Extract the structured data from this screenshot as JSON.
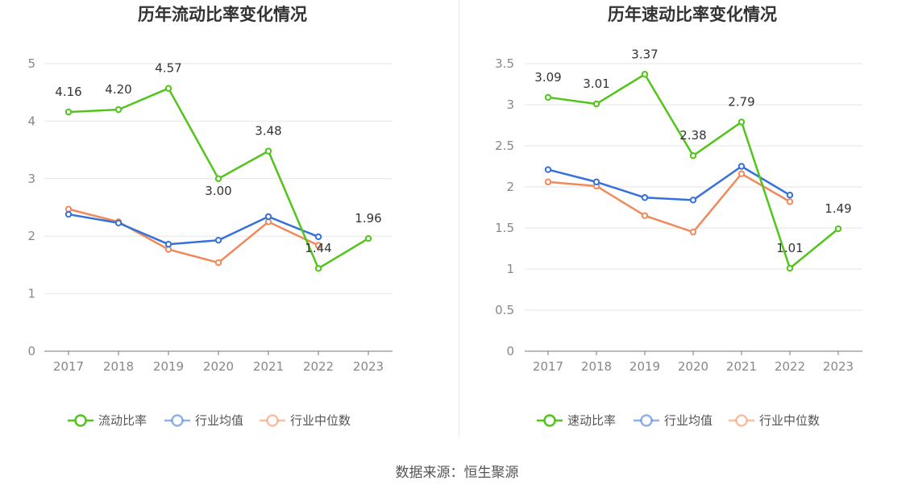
{
  "chart_data": [
    {
      "type": "line",
      "title": "历年流动比率变化情况",
      "categories": [
        "2017",
        "2018",
        "2019",
        "2020",
        "2021",
        "2022",
        "2023"
      ],
      "ylim": [
        0,
        5
      ],
      "yticks": [
        0,
        1,
        2,
        3,
        4,
        5
      ],
      "series": [
        {
          "name": "流动比率",
          "color": "#52c41a",
          "values": [
            4.16,
            4.2,
            4.57,
            3.0,
            3.48,
            1.44,
            1.96
          ],
          "labels": [
            "4.16",
            "4.20",
            "4.57",
            "3.00",
            "3.48",
            "1.44",
            "1.96"
          ]
        },
        {
          "name": "行业均值",
          "color": "#3571d9",
          "values": [
            2.38,
            2.23,
            1.86,
            1.93,
            2.34,
            1.99,
            null
          ]
        },
        {
          "name": "行业中位数",
          "color": "#f08a5d",
          "values": [
            2.47,
            2.25,
            1.77,
            1.54,
            2.25,
            1.84,
            null
          ]
        }
      ]
    },
    {
      "type": "line",
      "title": "历年速动比率变化情况",
      "categories": [
        "2017",
        "2018",
        "2019",
        "2020",
        "2021",
        "2022",
        "2023"
      ],
      "ylim": [
        0,
        3.5
      ],
      "yticks": [
        0,
        0.5,
        1,
        1.5,
        2,
        2.5,
        3,
        3.5
      ],
      "series": [
        {
          "name": "速动比率",
          "color": "#52c41a",
          "values": [
            3.09,
            3.01,
            3.37,
            2.38,
            2.79,
            1.01,
            1.49
          ],
          "labels": [
            "3.09",
            "3.01",
            "3.37",
            "2.38",
            "2.79",
            "1.01",
            "1.49"
          ]
        },
        {
          "name": "行业均值",
          "color": "#3571d9",
          "values": [
            2.21,
            2.06,
            1.87,
            1.84,
            2.25,
            1.9,
            null
          ]
        },
        {
          "name": "行业中位数",
          "color": "#f08a5d",
          "values": [
            2.06,
            2.01,
            1.65,
            1.45,
            2.16,
            1.82,
            null
          ]
        }
      ]
    }
  ],
  "footer": {
    "source": "数据来源：恒生聚源"
  }
}
